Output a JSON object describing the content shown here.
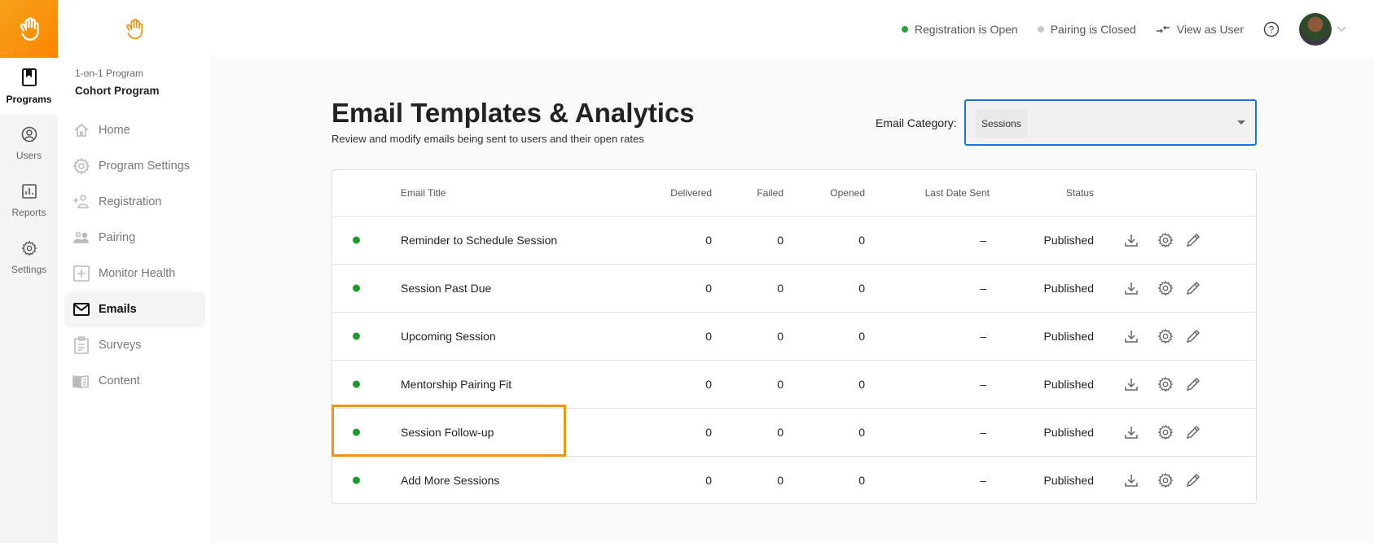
{
  "rail": {
    "items": [
      {
        "label": "Programs",
        "icon": "book-icon",
        "active": true
      },
      {
        "label": "Users",
        "icon": "user-circle-icon"
      },
      {
        "label": "Reports",
        "icon": "chart-icon"
      },
      {
        "label": "Settings",
        "icon": "gear-icon"
      }
    ]
  },
  "sidebar": {
    "program_type": "1-on-1 Program",
    "program_name": "Cohort Program",
    "items": [
      {
        "label": "Home"
      },
      {
        "label": "Program Settings"
      },
      {
        "label": "Registration"
      },
      {
        "label": "Pairing"
      },
      {
        "label": "Monitor Health"
      },
      {
        "label": "Emails",
        "active": true
      },
      {
        "label": "Surveys"
      },
      {
        "label": "Content"
      }
    ]
  },
  "topbar": {
    "registration": "Registration is Open",
    "pairing": "Pairing is Closed",
    "view_as_user": "View as User",
    "colors": {
      "open": "#2ea043",
      "closed": "#c8c8c8"
    }
  },
  "page": {
    "title": "Email Templates & Analytics",
    "subtitle": "Review and modify emails being sent to users and their open rates",
    "category_label": "Email Category:",
    "category_value": "Sessions"
  },
  "table": {
    "headers": {
      "title": "Email Title",
      "delivered": "Delivered",
      "failed": "Failed",
      "opened": "Opened",
      "last_sent": "Last Date Sent",
      "status": "Status"
    },
    "rows": [
      {
        "title": "Reminder to Schedule Session",
        "delivered": "0",
        "failed": "0",
        "opened": "0",
        "last_sent": "–",
        "status": "Published"
      },
      {
        "title": "Session Past Due",
        "delivered": "0",
        "failed": "0",
        "opened": "0",
        "last_sent": "–",
        "status": "Published"
      },
      {
        "title": "Upcoming Session",
        "delivered": "0",
        "failed": "0",
        "opened": "0",
        "last_sent": "–",
        "status": "Published"
      },
      {
        "title": "Mentorship Pairing Fit",
        "delivered": "0",
        "failed": "0",
        "opened": "0",
        "last_sent": "–",
        "status": "Published"
      },
      {
        "title": "Session Follow-up",
        "delivered": "0",
        "failed": "0",
        "opened": "0",
        "last_sent": "–",
        "status": "Published",
        "highlighted": true
      },
      {
        "title": "Add More Sessions",
        "delivered": "0",
        "failed": "0",
        "opened": "0",
        "last_sent": "–",
        "status": "Published"
      }
    ]
  },
  "colors": {
    "brand": "#fb8c00",
    "highlight": "#f7920f",
    "select_border": "#1a73d9"
  }
}
